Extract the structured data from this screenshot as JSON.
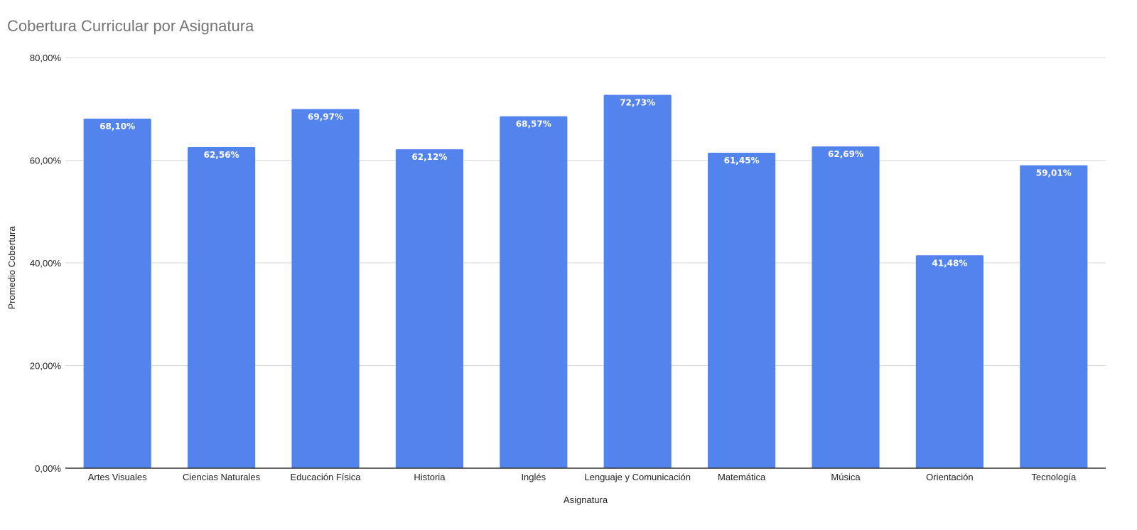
{
  "chart_data": {
    "type": "bar",
    "title": "Cobertura Curricular por Asignatura",
    "xlabel": "Asignatura",
    "ylabel": "Promedio Cobertura",
    "categories": [
      "Artes Visuales",
      "Ciencias Naturales",
      "Educación Física",
      "Historia",
      "Inglés",
      "Lenguaje y Comunicación",
      "Matemática",
      "Música",
      "Orientación",
      "Tecnología"
    ],
    "values": [
      68.1,
      62.56,
      69.97,
      62.12,
      68.57,
      72.73,
      61.45,
      62.69,
      41.48,
      59.01
    ],
    "value_labels": [
      "68,10%",
      "62,56%",
      "69,97%",
      "62,12%",
      "68,57%",
      "72,73%",
      "61,45%",
      "62,69%",
      "41,48%",
      "59,01%"
    ],
    "ylim": [
      0,
      80
    ],
    "yticks": [
      0,
      20,
      40,
      60,
      80
    ],
    "ytick_labels": [
      "0,00%",
      "20,00%",
      "40,00%",
      "60,00%",
      "80,00%"
    ],
    "grid": true,
    "legend": "none",
    "colors": {
      "bar": "#5383ec",
      "grid": "#d9d9d9",
      "axis": "#333333",
      "title": "#757575"
    }
  }
}
